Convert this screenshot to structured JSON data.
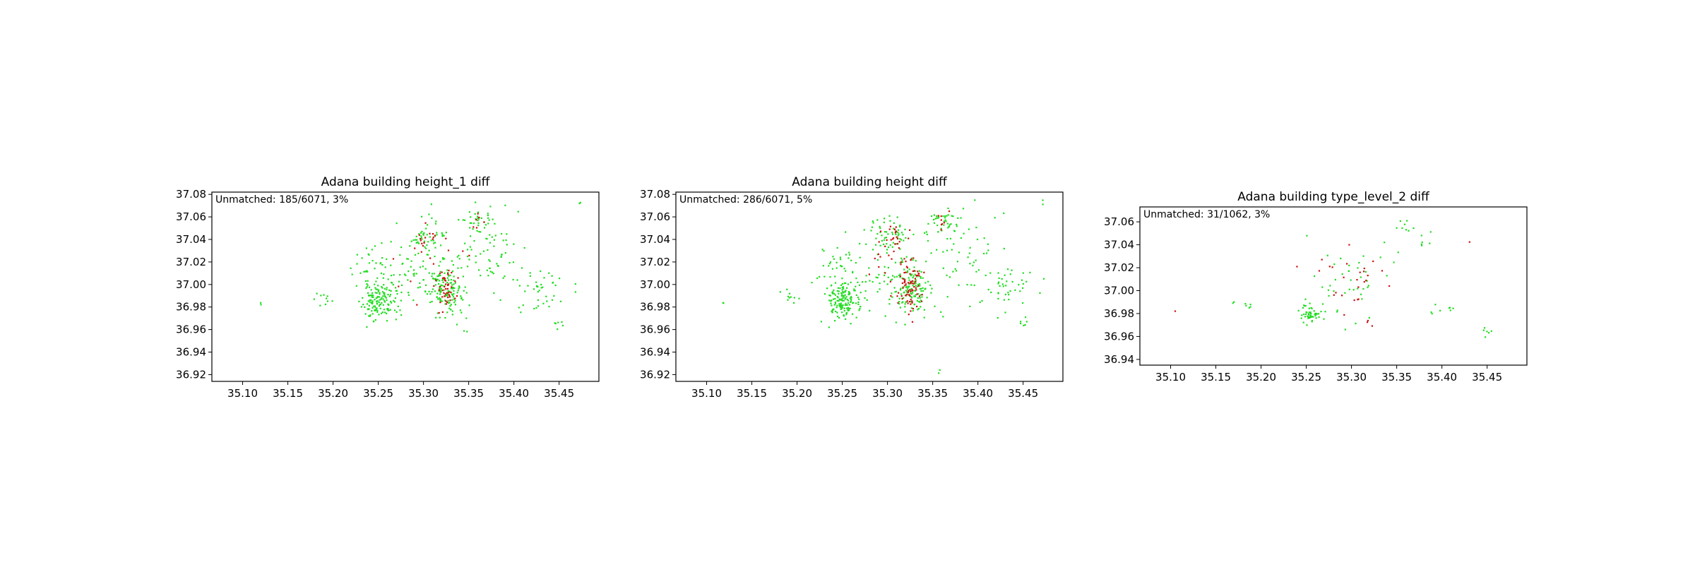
{
  "chart_data": [
    {
      "type": "scatter",
      "title": "Adana building height_1 diff",
      "annotation": "Unmatched: 185/6071, 3%",
      "xlim": [
        35.066,
        35.494
      ],
      "ylim": [
        36.914,
        37.082
      ],
      "xticks": [
        "35.10",
        "35.15",
        "35.20",
        "35.25",
        "35.30",
        "35.35",
        "35.40",
        "35.45"
      ],
      "yticks": [
        "36.92",
        "36.94",
        "36.96",
        "36.98",
        "37.00",
        "37.02",
        "37.04",
        "37.06",
        "37.08"
      ],
      "colors": {
        "matched": "#22dd22",
        "unmatched": "#cc1111"
      },
      "clusters": [
        {
          "x": 35.25,
          "y": 36.985,
          "sx": 0.009,
          "sy": 0.008,
          "n": 140
        },
        {
          "x": 35.325,
          "y": 36.995,
          "sx": 0.01,
          "sy": 0.012,
          "n": 130
        },
        {
          "x": 35.305,
          "y": 37.04,
          "sx": 0.01,
          "sy": 0.01,
          "n": 50
        },
        {
          "x": 35.36,
          "y": 37.055,
          "sx": 0.008,
          "sy": 0.006,
          "n": 35
        },
        {
          "x": 35.43,
          "y": 36.998,
          "sx": 0.015,
          "sy": 0.01,
          "n": 40
        },
        {
          "x": 35.24,
          "y": 37.02,
          "sx": 0.012,
          "sy": 0.008,
          "n": 30
        },
        {
          "x": 35.38,
          "y": 37.03,
          "sx": 0.02,
          "sy": 0.02,
          "n": 60
        },
        {
          "x": 35.29,
          "y": 37.01,
          "sx": 0.025,
          "sy": 0.02,
          "n": 70
        },
        {
          "x": 35.19,
          "y": 36.99,
          "sx": 0.006,
          "sy": 0.004,
          "n": 10
        },
        {
          "x": 35.45,
          "y": 36.965,
          "sx": 0.003,
          "sy": 0.002,
          "n": 6
        },
        {
          "x": 35.12,
          "y": 36.984,
          "sx": 0.001,
          "sy": 0.001,
          "n": 2
        },
        {
          "x": 35.472,
          "y": 37.073,
          "sx": 0.001,
          "sy": 0.001,
          "n": 2
        },
        {
          "x": 35.345,
          "y": 36.955,
          "sx": 0.002,
          "sy": 0.002,
          "n": 2
        }
      ],
      "unmatched_clusters": [
        {
          "x": 35.325,
          "y": 36.998,
          "sx": 0.006,
          "sy": 0.01,
          "n": 45
        },
        {
          "x": 35.305,
          "y": 37.04,
          "sx": 0.006,
          "sy": 0.006,
          "n": 12
        },
        {
          "x": 35.36,
          "y": 37.055,
          "sx": 0.004,
          "sy": 0.004,
          "n": 6
        },
        {
          "x": 35.3,
          "y": 37.015,
          "sx": 0.02,
          "sy": 0.02,
          "n": 15
        }
      ],
      "point_size": 2.2,
      "seed": 11
    },
    {
      "type": "scatter",
      "title": "Adana building height diff",
      "annotation": "Unmatched: 286/6071, 5%",
      "xlim": [
        35.066,
        35.494
      ],
      "ylim": [
        36.914,
        37.082
      ],
      "xticks": [
        "35.10",
        "35.15",
        "35.20",
        "35.25",
        "35.30",
        "35.35",
        "35.40",
        "35.45"
      ],
      "yticks": [
        "36.92",
        "36.94",
        "36.96",
        "36.98",
        "37.00",
        "37.02",
        "37.04",
        "37.06",
        "37.08"
      ],
      "colors": {
        "matched": "#22dd22",
        "unmatched": "#cc1111"
      },
      "clusters": [
        {
          "x": 35.25,
          "y": 36.985,
          "sx": 0.009,
          "sy": 0.008,
          "n": 140
        },
        {
          "x": 35.325,
          "y": 36.995,
          "sx": 0.01,
          "sy": 0.012,
          "n": 130
        },
        {
          "x": 35.305,
          "y": 37.04,
          "sx": 0.01,
          "sy": 0.01,
          "n": 50
        },
        {
          "x": 35.36,
          "y": 37.055,
          "sx": 0.008,
          "sy": 0.006,
          "n": 35
        },
        {
          "x": 35.43,
          "y": 36.998,
          "sx": 0.015,
          "sy": 0.01,
          "n": 40
        },
        {
          "x": 35.24,
          "y": 37.02,
          "sx": 0.012,
          "sy": 0.008,
          "n": 30
        },
        {
          "x": 35.38,
          "y": 37.03,
          "sx": 0.02,
          "sy": 0.02,
          "n": 60
        },
        {
          "x": 35.29,
          "y": 37.01,
          "sx": 0.025,
          "sy": 0.02,
          "n": 70
        },
        {
          "x": 35.19,
          "y": 36.99,
          "sx": 0.006,
          "sy": 0.004,
          "n": 10
        },
        {
          "x": 35.45,
          "y": 36.965,
          "sx": 0.003,
          "sy": 0.002,
          "n": 6
        },
        {
          "x": 35.12,
          "y": 36.984,
          "sx": 0.001,
          "sy": 0.001,
          "n": 2
        },
        {
          "x": 35.472,
          "y": 37.073,
          "sx": 0.001,
          "sy": 0.001,
          "n": 2
        },
        {
          "x": 35.358,
          "y": 36.923,
          "sx": 0.001,
          "sy": 0.001,
          "n": 2
        }
      ],
      "unmatched_clusters": [
        {
          "x": 35.325,
          "y": 36.998,
          "sx": 0.007,
          "sy": 0.011,
          "n": 70
        },
        {
          "x": 35.305,
          "y": 37.04,
          "sx": 0.007,
          "sy": 0.008,
          "n": 20
        },
        {
          "x": 35.36,
          "y": 37.057,
          "sx": 0.004,
          "sy": 0.004,
          "n": 8
        },
        {
          "x": 35.3,
          "y": 37.015,
          "sx": 0.02,
          "sy": 0.02,
          "n": 20
        }
      ],
      "point_size": 2.2,
      "seed": 23
    },
    {
      "type": "scatter",
      "title": "Adana building type_level_2 diff",
      "annotation": "Unmatched: 31/1062, 3%",
      "xlim": [
        35.066,
        35.494
      ],
      "ylim": [
        36.935,
        37.073
      ],
      "xticks": [
        "35.10",
        "35.15",
        "35.20",
        "35.25",
        "35.30",
        "35.35",
        "35.40",
        "35.45"
      ],
      "yticks": [
        "36.94",
        "36.96",
        "36.98",
        "37.00",
        "37.02",
        "37.04",
        "37.06"
      ],
      "colors": {
        "matched": "#22dd22",
        "unmatched": "#cc1111"
      },
      "clusters": [
        {
          "x": 35.255,
          "y": 36.98,
          "sx": 0.005,
          "sy": 0.004,
          "n": 50
        },
        {
          "x": 35.3,
          "y": 37.01,
          "sx": 0.025,
          "sy": 0.02,
          "n": 45
        },
        {
          "x": 35.36,
          "y": 37.055,
          "sx": 0.005,
          "sy": 0.005,
          "n": 8
        },
        {
          "x": 35.38,
          "y": 37.04,
          "sx": 0.005,
          "sy": 0.004,
          "n": 6
        },
        {
          "x": 35.4,
          "y": 36.985,
          "sx": 0.01,
          "sy": 0.005,
          "n": 8
        },
        {
          "x": 35.185,
          "y": 36.986,
          "sx": 0.003,
          "sy": 0.002,
          "n": 5
        },
        {
          "x": 35.45,
          "y": 36.965,
          "sx": 0.003,
          "sy": 0.002,
          "n": 6
        },
        {
          "x": 35.17,
          "y": 36.99,
          "sx": 0.001,
          "sy": 0.001,
          "n": 2
        }
      ],
      "unmatched_clusters": [
        {
          "x": 35.31,
          "y": 37.005,
          "sx": 0.015,
          "sy": 0.015,
          "n": 20
        },
        {
          "x": 35.28,
          "y": 37.02,
          "sx": 0.015,
          "sy": 0.01,
          "n": 6
        },
        {
          "x": 35.105,
          "y": 36.983,
          "sx": 0.0005,
          "sy": 0.0005,
          "n": 1
        },
        {
          "x": 35.43,
          "y": 37.043,
          "sx": 0.0005,
          "sy": 0.0005,
          "n": 1
        },
        {
          "x": 35.32,
          "y": 36.973,
          "sx": 0.002,
          "sy": 0.002,
          "n": 3
        }
      ],
      "point_size": 2.2,
      "seed": 37
    }
  ]
}
